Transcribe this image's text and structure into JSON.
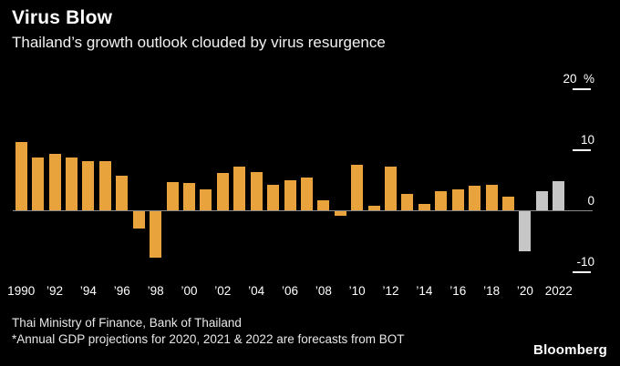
{
  "title": "Virus Blow",
  "subtitle": "Thailand’s growth outlook clouded by virus resurgence",
  "source_line1": "Thai Ministry of Finance, Bank of Thailand",
  "source_line2": "*Annual GDP projections for 2020, 2021 & 2022 are forecasts from BOT",
  "logo": "Bloomberg",
  "colors": {
    "background": "#000000",
    "bar_actual": "#E8A33D",
    "bar_forecast": "#C6C6C6",
    "zero_line": "#8a8a8a",
    "tick_line": "#ffffff",
    "text": "#ffffff"
  },
  "chart_data": {
    "type": "bar",
    "title": "Virus Blow",
    "subtitle": "Thailand’s growth outlook clouded by virus resurgence",
    "ylabel": "%",
    "ylim": [
      -10,
      20
    ],
    "yticks": [
      20,
      10,
      0,
      -10
    ],
    "ytick_labels": [
      "20  %",
      "10",
      "0",
      "-10"
    ],
    "x_tick_labels": [
      "1990",
      "’92",
      "’94",
      "’96",
      "’98",
      "’00",
      "’02",
      "’04",
      "’06",
      "’08",
      "’10",
      "’12",
      "’14",
      "’16",
      "’18",
      "’20",
      "2022"
    ],
    "years": [
      1990,
      1991,
      1992,
      1993,
      1994,
      1995,
      1996,
      1997,
      1998,
      1999,
      2000,
      2001,
      2002,
      2003,
      2004,
      2005,
      2006,
      2007,
      2008,
      2009,
      2010,
      2011,
      2012,
      2013,
      2014,
      2015,
      2016,
      2017,
      2018,
      2019,
      2020,
      2021,
      2022
    ],
    "values": [
      11.2,
      8.6,
      9.2,
      8.7,
      8.0,
      8.1,
      5.7,
      -2.8,
      -7.6,
      4.6,
      4.5,
      3.4,
      6.1,
      7.2,
      6.3,
      4.2,
      5.0,
      5.4,
      1.7,
      -0.7,
      7.5,
      0.8,
      7.2,
      2.7,
      1.0,
      3.1,
      3.4,
      4.1,
      4.2,
      2.3,
      -6.6,
      3.2,
      4.8
    ],
    "forecast_years": [
      2020,
      2021,
      2022
    ],
    "series_note": "orange = actual annual GDP growth, gray = BOT forecast",
    "legend": "none",
    "grid": "zero line only, right-side tick marks"
  }
}
